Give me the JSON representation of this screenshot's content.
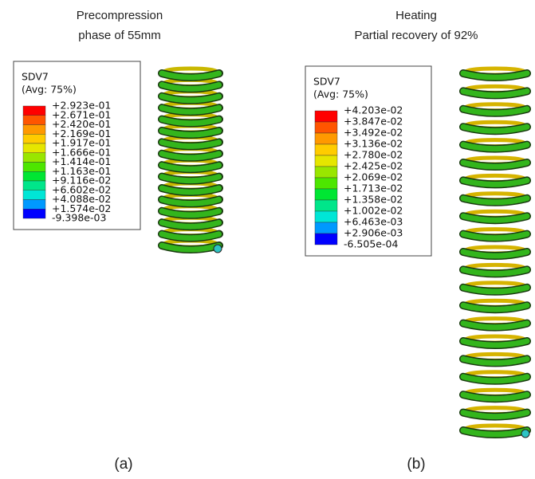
{
  "panels": [
    {
      "title": [
        "Precompression",
        "phase of 55mm"
      ],
      "legend": {
        "variable": "SDV7",
        "averaging": "(Avg: 75%)",
        "labels": [
          "+2.923e-01",
          "+2.671e-01",
          "+2.420e-01",
          "+2.169e-01",
          "+1.917e-01",
          "+1.666e-01",
          "+1.414e-01",
          "+1.163e-01",
          "+9.116e-02",
          "+6.602e-02",
          "+4.088e-02",
          "+1.574e-02",
          "-9.398e-03"
        ]
      },
      "caption": "(a)"
    },
    {
      "title": [
        "Heating",
        "Partial recovery of 92%"
      ],
      "legend": {
        "variable": "SDV7",
        "averaging": "(Avg: 75%)",
        "labels": [
          "+4.203e-02",
          "+3.847e-02",
          "+3.492e-02",
          "+3.136e-02",
          "+2.780e-02",
          "+2.425e-02",
          "+2.069e-02",
          "+1.713e-02",
          "+1.358e-02",
          "+1.002e-02",
          "+6.463e-03",
          "+2.906e-03",
          "-6.505e-04"
        ]
      },
      "caption": "(b)"
    }
  ]
}
